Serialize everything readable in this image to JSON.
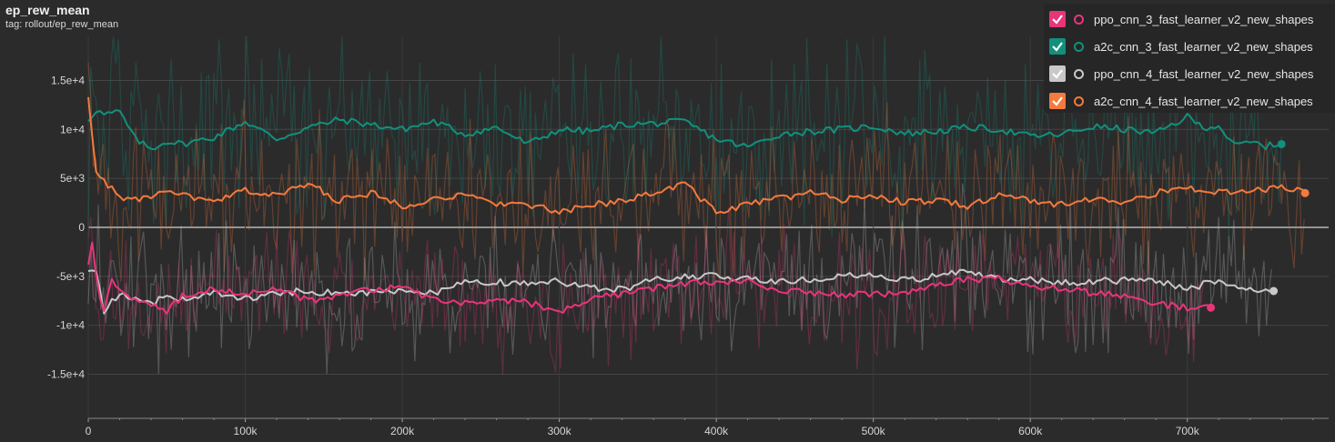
{
  "header": {
    "title": "ep_rew_mean",
    "tag": "tag: rollout/ep_rew_mean"
  },
  "legend": {
    "items": [
      {
        "label": "ppo_cnn_3_fast_learner_v2_new_shapes",
        "color": "#e8357a",
        "checked": true
      },
      {
        "label": "a2c_cnn_3_fast_learner_v2_new_shapes",
        "color": "#12907c",
        "checked": true
      },
      {
        "label": "ppo_cnn_4_fast_learner_v2_new_shapes",
        "color": "#c8c8c8",
        "checked": true
      },
      {
        "label": "a2c_cnn_4_fast_learner_v2_new_shapes",
        "color": "#f47a3e",
        "checked": true
      }
    ]
  },
  "chart_data": {
    "type": "line",
    "title": "ep_rew_mean",
    "subtitle": "tag: rollout/ep_rew_mean",
    "xlabel": "",
    "ylabel": "",
    "xlim": [
      0,
      790000
    ],
    "ylim": [
      -19500,
      19500
    ],
    "x_ticks": [
      0,
      100000,
      200000,
      300000,
      400000,
      500000,
      600000,
      700000
    ],
    "x_tick_labels": [
      "0",
      "100k",
      "200k",
      "300k",
      "400k",
      "500k",
      "600k",
      "700k"
    ],
    "y_ticks": [
      15000,
      10000,
      5000,
      0,
      -5000,
      -10000,
      -15000
    ],
    "y_tick_labels": [
      "1.5e+4",
      "1e+4",
      "5e+3",
      "0",
      "-5e+3",
      "-1e+4",
      "-1.5e+4"
    ],
    "grid": true,
    "legend_position": "top-right",
    "smoothing": true,
    "series": [
      {
        "name": "a2c_cnn_3_fast_learner_v2_new_shapes",
        "color": "#12907c",
        "x": [
          0,
          5000,
          10000,
          20000,
          30000,
          40000,
          50000,
          60000,
          80000,
          100000,
          120000,
          140000,
          160000,
          180000,
          200000,
          220000,
          240000,
          260000,
          280000,
          300000,
          320000,
          340000,
          360000,
          380000,
          400000,
          420000,
          440000,
          460000,
          480000,
          500000,
          520000,
          540000,
          560000,
          580000,
          600000,
          620000,
          640000,
          660000,
          680000,
          700000,
          710000,
          720000,
          730000,
          740000,
          750000,
          760000
        ],
        "y": [
          11000,
          12000,
          11500,
          11800,
          9000,
          8000,
          8800,
          8500,
          9200,
          10800,
          9000,
          10200,
          11000,
          10500,
          10000,
          10800,
          9500,
          10200,
          8500,
          10000,
          9800,
          10500,
          10600,
          10800,
          9000,
          8200,
          9500,
          9800,
          10000,
          10300,
          9600,
          9800,
          10200,
          10000,
          9300,
          9500,
          10300,
          10000,
          9600,
          11300,
          10200,
          10400,
          8300,
          8700,
          8300,
          8500
        ]
      },
      {
        "name": "a2c_cnn_4_fast_learner_v2_new_shapes",
        "color": "#f47a3e",
        "x": [
          0,
          5000,
          10000,
          20000,
          30000,
          40000,
          50000,
          60000,
          80000,
          100000,
          120000,
          140000,
          160000,
          180000,
          200000,
          220000,
          240000,
          260000,
          280000,
          300000,
          320000,
          340000,
          360000,
          380000,
          400000,
          420000,
          440000,
          460000,
          480000,
          500000,
          520000,
          540000,
          560000,
          580000,
          600000,
          620000,
          640000,
          660000,
          680000,
          700000,
          720000,
          740000,
          760000,
          775000
        ],
        "y": [
          13500,
          5500,
          4800,
          3000,
          2800,
          3200,
          3500,
          3300,
          2500,
          3800,
          3200,
          4500,
          2700,
          3500,
          2200,
          3000,
          3200,
          2500,
          2300,
          1500,
          2200,
          2800,
          3500,
          4500,
          1500,
          2300,
          3000,
          3500,
          2800,
          3300,
          2500,
          2800,
          2200,
          3200,
          2800,
          2300,
          3000,
          2500,
          3500,
          4000,
          3600,
          3600,
          4200,
          3500
        ]
      },
      {
        "name": "ppo_cnn_4_fast_learner_v2_new_shapes",
        "color": "#c8c8c8",
        "x": [
          0,
          5000,
          10000,
          20000,
          30000,
          40000,
          50000,
          60000,
          80000,
          100000,
          120000,
          140000,
          160000,
          180000,
          200000,
          220000,
          240000,
          260000,
          280000,
          300000,
          320000,
          340000,
          360000,
          380000,
          400000,
          420000,
          440000,
          460000,
          480000,
          500000,
          520000,
          540000,
          560000,
          580000,
          600000,
          620000,
          640000,
          660000,
          680000,
          700000,
          720000,
          740000,
          755000
        ],
        "y": [
          -4200,
          -4500,
          -8500,
          -6800,
          -7300,
          -7800,
          -7000,
          -7300,
          -6700,
          -7300,
          -6700,
          -6500,
          -6800,
          -6600,
          -6500,
          -6700,
          -5700,
          -5600,
          -5800,
          -5500,
          -6200,
          -6300,
          -5400,
          -5000,
          -5000,
          -5200,
          -5500,
          -5400,
          -5000,
          -4800,
          -5400,
          -5000,
          -4400,
          -5200,
          -5300,
          -5700,
          -5500,
          -5400,
          -5500,
          -6200,
          -5500,
          -6300,
          -6500
        ]
      },
      {
        "name": "ppo_cnn_3_fast_learner_v2_new_shapes",
        "color": "#e8357a",
        "x": [
          0,
          3000,
          6000,
          10000,
          15000,
          20000,
          30000,
          40000,
          50000,
          60000,
          80000,
          100000,
          120000,
          140000,
          160000,
          180000,
          200000,
          220000,
          240000,
          260000,
          280000,
          300000,
          320000,
          340000,
          360000,
          380000,
          400000,
          420000,
          440000,
          460000,
          480000,
          500000,
          520000,
          540000,
          560000,
          580000,
          600000,
          620000,
          640000,
          660000,
          680000,
          700000,
          715000
        ],
        "y": [
          -3500,
          -1200,
          -7000,
          -8500,
          -5500,
          -6000,
          -7500,
          -8000,
          -8500,
          -7000,
          -6300,
          -6800,
          -6200,
          -7500,
          -7000,
          -6300,
          -6200,
          -7300,
          -7800,
          -7500,
          -7700,
          -8600,
          -7300,
          -6800,
          -6200,
          -5700,
          -5500,
          -5600,
          -6300,
          -6700,
          -7000,
          -6800,
          -6700,
          -6000,
          -5300,
          -5300,
          -6000,
          -6300,
          -6700,
          -7000,
          -7800,
          -8200,
          -8200
        ]
      }
    ]
  }
}
